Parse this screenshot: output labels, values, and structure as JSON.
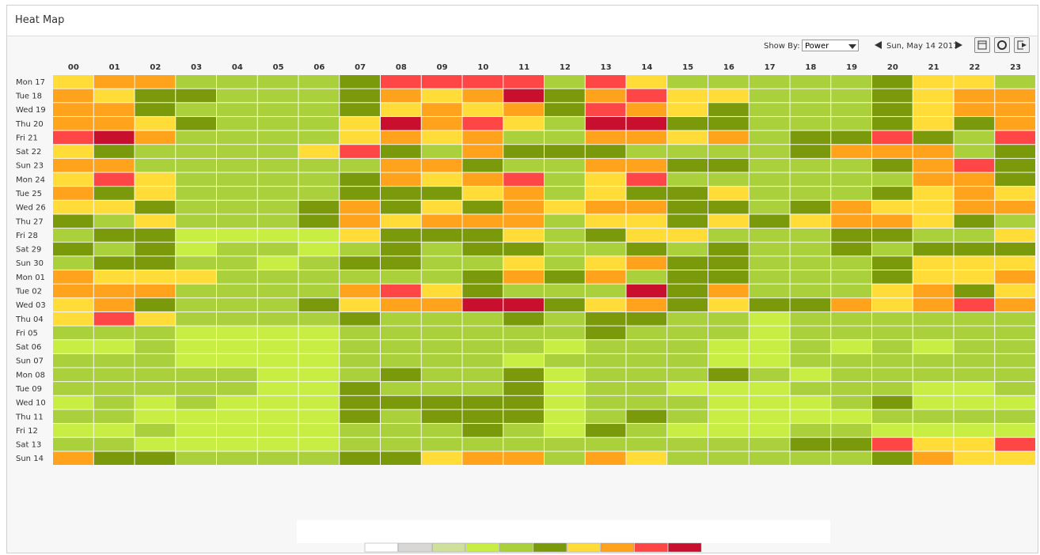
{
  "title": "Heat Map",
  "show_by_label": "Show By:",
  "show_by_value": "Power",
  "date": "Sun, May 14 2017",
  "palette": [
    "#ffffff",
    "#d9d6d6",
    "#cfe09c",
    "#c8ee44",
    "#aad03c",
    "#7a9a0c",
    "#ffdc38",
    "#ffa31c",
    "#ff4646",
    "#c8102e"
  ],
  "columns": [
    "00",
    "01",
    "02",
    "03",
    "04",
    "05",
    "06",
    "07",
    "08",
    "09",
    "10",
    "11",
    "12",
    "13",
    "14",
    "15",
    "16",
    "17",
    "18",
    "19",
    "20",
    "21",
    "22",
    "23"
  ],
  "rows": [
    {
      "label": "Mon 17",
      "values": [
        6,
        7,
        7,
        4,
        4,
        4,
        4,
        5,
        8,
        8,
        8,
        8,
        4,
        8,
        6,
        4,
        4,
        4,
        4,
        4,
        5,
        6,
        6,
        4
      ]
    },
    {
      "label": "Tue 18",
      "values": [
        7,
        6,
        5,
        5,
        4,
        4,
        4,
        5,
        7,
        6,
        7,
        9,
        5,
        7,
        8,
        6,
        6,
        4,
        4,
        4,
        5,
        6,
        7,
        7
      ]
    },
    {
      "label": "Wed 19",
      "values": [
        7,
        7,
        5,
        4,
        4,
        4,
        4,
        5,
        6,
        7,
        6,
        7,
        5,
        8,
        7,
        6,
        5,
        4,
        4,
        4,
        5,
        6,
        7,
        7
      ]
    },
    {
      "label": "Thu 20",
      "values": [
        7,
        7,
        6,
        5,
        4,
        4,
        4,
        6,
        9,
        7,
        8,
        6,
        4,
        9,
        9,
        5,
        5,
        4,
        4,
        4,
        5,
        6,
        5,
        7
      ]
    },
    {
      "label": "Fri 21",
      "values": [
        8,
        9,
        7,
        4,
        4,
        4,
        4,
        6,
        7,
        6,
        7,
        4,
        4,
        7,
        7,
        6,
        7,
        4,
        5,
        5,
        8,
        5,
        4,
        8
      ]
    },
    {
      "label": "Sat 22",
      "values": [
        6,
        5,
        4,
        4,
        4,
        4,
        6,
        8,
        5,
        4,
        7,
        5,
        5,
        5,
        4,
        4,
        4,
        4,
        5,
        7,
        7,
        7,
        4,
        5
      ]
    },
    {
      "label": "Sun 23",
      "values": [
        7,
        7,
        4,
        4,
        4,
        4,
        4,
        4,
        7,
        7,
        5,
        4,
        4,
        7,
        7,
        5,
        5,
        4,
        4,
        4,
        5,
        7,
        8,
        5
      ]
    },
    {
      "label": "Mon 24",
      "values": [
        6,
        8,
        6,
        4,
        4,
        4,
        4,
        5,
        7,
        6,
        7,
        8,
        4,
        6,
        8,
        4,
        4,
        4,
        4,
        4,
        4,
        7,
        7,
        5
      ]
    },
    {
      "label": "Tue 25",
      "values": [
        7,
        5,
        6,
        4,
        4,
        4,
        4,
        5,
        5,
        5,
        6,
        7,
        4,
        6,
        5,
        5,
        6,
        4,
        4,
        4,
        5,
        6,
        7,
        6
      ]
    },
    {
      "label": "Wed 26",
      "values": [
        6,
        6,
        5,
        4,
        4,
        4,
        5,
        7,
        5,
        6,
        5,
        7,
        6,
        7,
        7,
        5,
        5,
        4,
        5,
        7,
        6,
        6,
        7,
        7
      ]
    },
    {
      "label": "Thu 27",
      "values": [
        5,
        4,
        6,
        4,
        4,
        4,
        5,
        7,
        6,
        7,
        7,
        7,
        4,
        6,
        6,
        5,
        6,
        5,
        6,
        7,
        7,
        6,
        5,
        4
      ]
    },
    {
      "label": "Fri 28",
      "values": [
        4,
        5,
        5,
        3,
        3,
        3,
        3,
        6,
        5,
        5,
        5,
        6,
        4,
        5,
        6,
        6,
        4,
        4,
        4,
        5,
        5,
        4,
        4,
        6
      ]
    },
    {
      "label": "Sat 29",
      "values": [
        5,
        4,
        5,
        3,
        4,
        4,
        3,
        4,
        5,
        4,
        5,
        5,
        4,
        4,
        5,
        4,
        5,
        4,
        4,
        5,
        4,
        5,
        5,
        5
      ]
    },
    {
      "label": "Sun 30",
      "values": [
        4,
        5,
        5,
        4,
        4,
        3,
        4,
        5,
        5,
        4,
        4,
        6,
        4,
        6,
        7,
        5,
        5,
        4,
        4,
        4,
        5,
        6,
        6,
        6
      ]
    },
    {
      "label": "Mon 01",
      "values": [
        7,
        6,
        6,
        6,
        4,
        4,
        4,
        4,
        4,
        4,
        5,
        7,
        5,
        7,
        4,
        5,
        5,
        4,
        4,
        4,
        5,
        6,
        6,
        7
      ]
    },
    {
      "label": "Tue 02",
      "values": [
        7,
        7,
        7,
        4,
        4,
        4,
        4,
        7,
        8,
        6,
        5,
        4,
        4,
        4,
        9,
        5,
        7,
        4,
        4,
        4,
        6,
        7,
        5,
        6
      ]
    },
    {
      "label": "Wed 03",
      "values": [
        6,
        7,
        5,
        4,
        4,
        4,
        5,
        6,
        7,
        7,
        9,
        9,
        5,
        6,
        7,
        5,
        6,
        5,
        5,
        7,
        6,
        7,
        8,
        7
      ]
    },
    {
      "label": "Thu 04",
      "values": [
        6,
        8,
        6,
        4,
        4,
        4,
        4,
        5,
        4,
        4,
        4,
        5,
        4,
        5,
        5,
        4,
        4,
        3,
        4,
        4,
        4,
        4,
        4,
        4
      ]
    },
    {
      "label": "Fri 05",
      "values": [
        4,
        4,
        4,
        3,
        3,
        3,
        3,
        4,
        4,
        4,
        4,
        4,
        4,
        5,
        4,
        4,
        4,
        3,
        4,
        4,
        4,
        4,
        4,
        4
      ]
    },
    {
      "label": "Sat 06",
      "values": [
        3,
        3,
        4,
        3,
        3,
        3,
        3,
        4,
        4,
        4,
        4,
        4,
        3,
        4,
        4,
        4,
        3,
        3,
        4,
        3,
        4,
        3,
        4,
        4
      ]
    },
    {
      "label": "Sun 07",
      "values": [
        4,
        4,
        4,
        3,
        3,
        3,
        3,
        4,
        4,
        4,
        4,
        3,
        4,
        4,
        4,
        4,
        3,
        3,
        4,
        4,
        4,
        4,
        4,
        4
      ]
    },
    {
      "label": "Mon 08",
      "values": [
        4,
        4,
        4,
        4,
        4,
        3,
        3,
        4,
        5,
        4,
        4,
        5,
        3,
        4,
        4,
        4,
        5,
        4,
        3,
        4,
        4,
        4,
        4,
        4
      ]
    },
    {
      "label": "Tue 09",
      "values": [
        4,
        4,
        4,
        4,
        4,
        3,
        3,
        5,
        4,
        4,
        4,
        5,
        3,
        4,
        4,
        3,
        3,
        3,
        4,
        4,
        4,
        3,
        3,
        4
      ]
    },
    {
      "label": "Wed 10",
      "values": [
        3,
        4,
        3,
        4,
        3,
        3,
        3,
        5,
        5,
        5,
        5,
        5,
        3,
        4,
        4,
        4,
        3,
        3,
        3,
        4,
        5,
        3,
        3,
        3
      ]
    },
    {
      "label": "Thu 11",
      "values": [
        4,
        4,
        3,
        3,
        3,
        3,
        3,
        5,
        4,
        5,
        5,
        5,
        3,
        4,
        5,
        4,
        3,
        3,
        3,
        3,
        4,
        4,
        4,
        4
      ]
    },
    {
      "label": "Fri 12",
      "values": [
        3,
        3,
        4,
        3,
        3,
        3,
        3,
        4,
        4,
        4,
        5,
        4,
        3,
        5,
        4,
        3,
        3,
        3,
        4,
        4,
        3,
        3,
        3,
        3
      ]
    },
    {
      "label": "Sat 13",
      "values": [
        4,
        4,
        3,
        3,
        3,
        3,
        3,
        4,
        4,
        4,
        4,
        4,
        4,
        4,
        4,
        4,
        4,
        4,
        5,
        5,
        8,
        6,
        6,
        8
      ]
    },
    {
      "label": "Sun 14",
      "values": [
        7,
        5,
        5,
        4,
        4,
        4,
        4,
        5,
        5,
        6,
        7,
        7,
        4,
        7,
        6,
        4,
        4,
        4,
        4,
        4,
        5,
        7,
        6,
        6
      ]
    }
  ]
}
